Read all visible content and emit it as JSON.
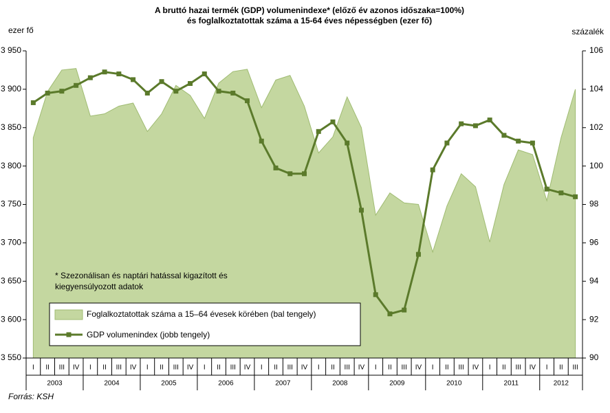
{
  "chart_data": {
    "type": "area-line",
    "title": [
      "A bruttó hazai termék (GDP) volumenindexe* (előző év azonos időszaka=100%)",
      "és foglalkoztatottak  száma a 15-64 éves népességben (ezer fő)"
    ],
    "y_label": "ezer fő",
    "y2_label": "százalék",
    "note": [
      "* Szezonálisan és naptári hatással kigazított és",
      "kiegyensúlyozott adatok"
    ],
    "source": "Forrás: KSH",
    "categories": [
      "I",
      "II",
      "III",
      "IV",
      "I",
      "II",
      "III",
      "IV",
      "I",
      "II",
      "III",
      "IV",
      "I",
      "II",
      "III",
      "IV",
      "I",
      "II",
      "III",
      "IV",
      "I",
      "II",
      "III",
      "IV",
      "I",
      "II",
      "III",
      "IV",
      "I",
      "II",
      "III",
      "IV",
      "I",
      "II",
      "III",
      "IV",
      "I",
      "II",
      "III"
    ],
    "years": [
      "2003",
      "2004",
      "2005",
      "2006",
      "2007",
      "2008",
      "2009",
      "2010",
      "2011",
      "2012"
    ],
    "series": [
      {
        "name": "Foglalkoztatottak száma a 15–64 évesek körében  (bal tengely)",
        "color": "#c4d7a0",
        "axis": "y",
        "values": [
          3837,
          3897,
          3925,
          3927,
          3865,
          3868,
          3878,
          3882,
          3845,
          3868,
          3905,
          3892,
          3862,
          3908,
          3923,
          3926,
          3876,
          3912,
          3918,
          3878,
          3817,
          3838,
          3890,
          3850,
          3736,
          3765,
          3752,
          3750,
          3688,
          3748,
          3790,
          3773,
          3701,
          3776,
          3821,
          3815,
          3755,
          3837,
          3900
        ]
      },
      {
        "name": "GDP volumenindex (jobb tengely)",
        "color": "#5b7a2b",
        "axis": "y2",
        "values": [
          103.3,
          103.8,
          103.9,
          104.2,
          104.6,
          104.9,
          104.8,
          104.5,
          103.8,
          104.4,
          103.9,
          104.3,
          104.8,
          103.9,
          103.8,
          103.4,
          101.3,
          99.9,
          99.6,
          99.6,
          101.8,
          102.3,
          101.2,
          97.7,
          93.3,
          92.3,
          92.5,
          95.4,
          99.8,
          101.2,
          102.2,
          102.1,
          102.4,
          101.6,
          101.3,
          101.2,
          98.8,
          98.6,
          98.4
        ]
      }
    ],
    "ylim": [
      3550,
      3950
    ],
    "yticks": [
      {
        "value": 3550,
        "label": "3 550"
      },
      {
        "value": 3600,
        "label": "3 600"
      },
      {
        "value": 3650,
        "label": "3 650"
      },
      {
        "value": 3700,
        "label": "3 700"
      },
      {
        "value": 3750,
        "label": "3 750"
      },
      {
        "value": 3800,
        "label": "3 800"
      },
      {
        "value": 3850,
        "label": "3 850"
      },
      {
        "value": 3900,
        "label": "3 900"
      },
      {
        "value": 3950,
        "label": "3 950"
      }
    ],
    "y2lim": [
      90,
      106
    ],
    "y2ticks": [
      90,
      92,
      94,
      96,
      98,
      100,
      102,
      104,
      106
    ]
  }
}
